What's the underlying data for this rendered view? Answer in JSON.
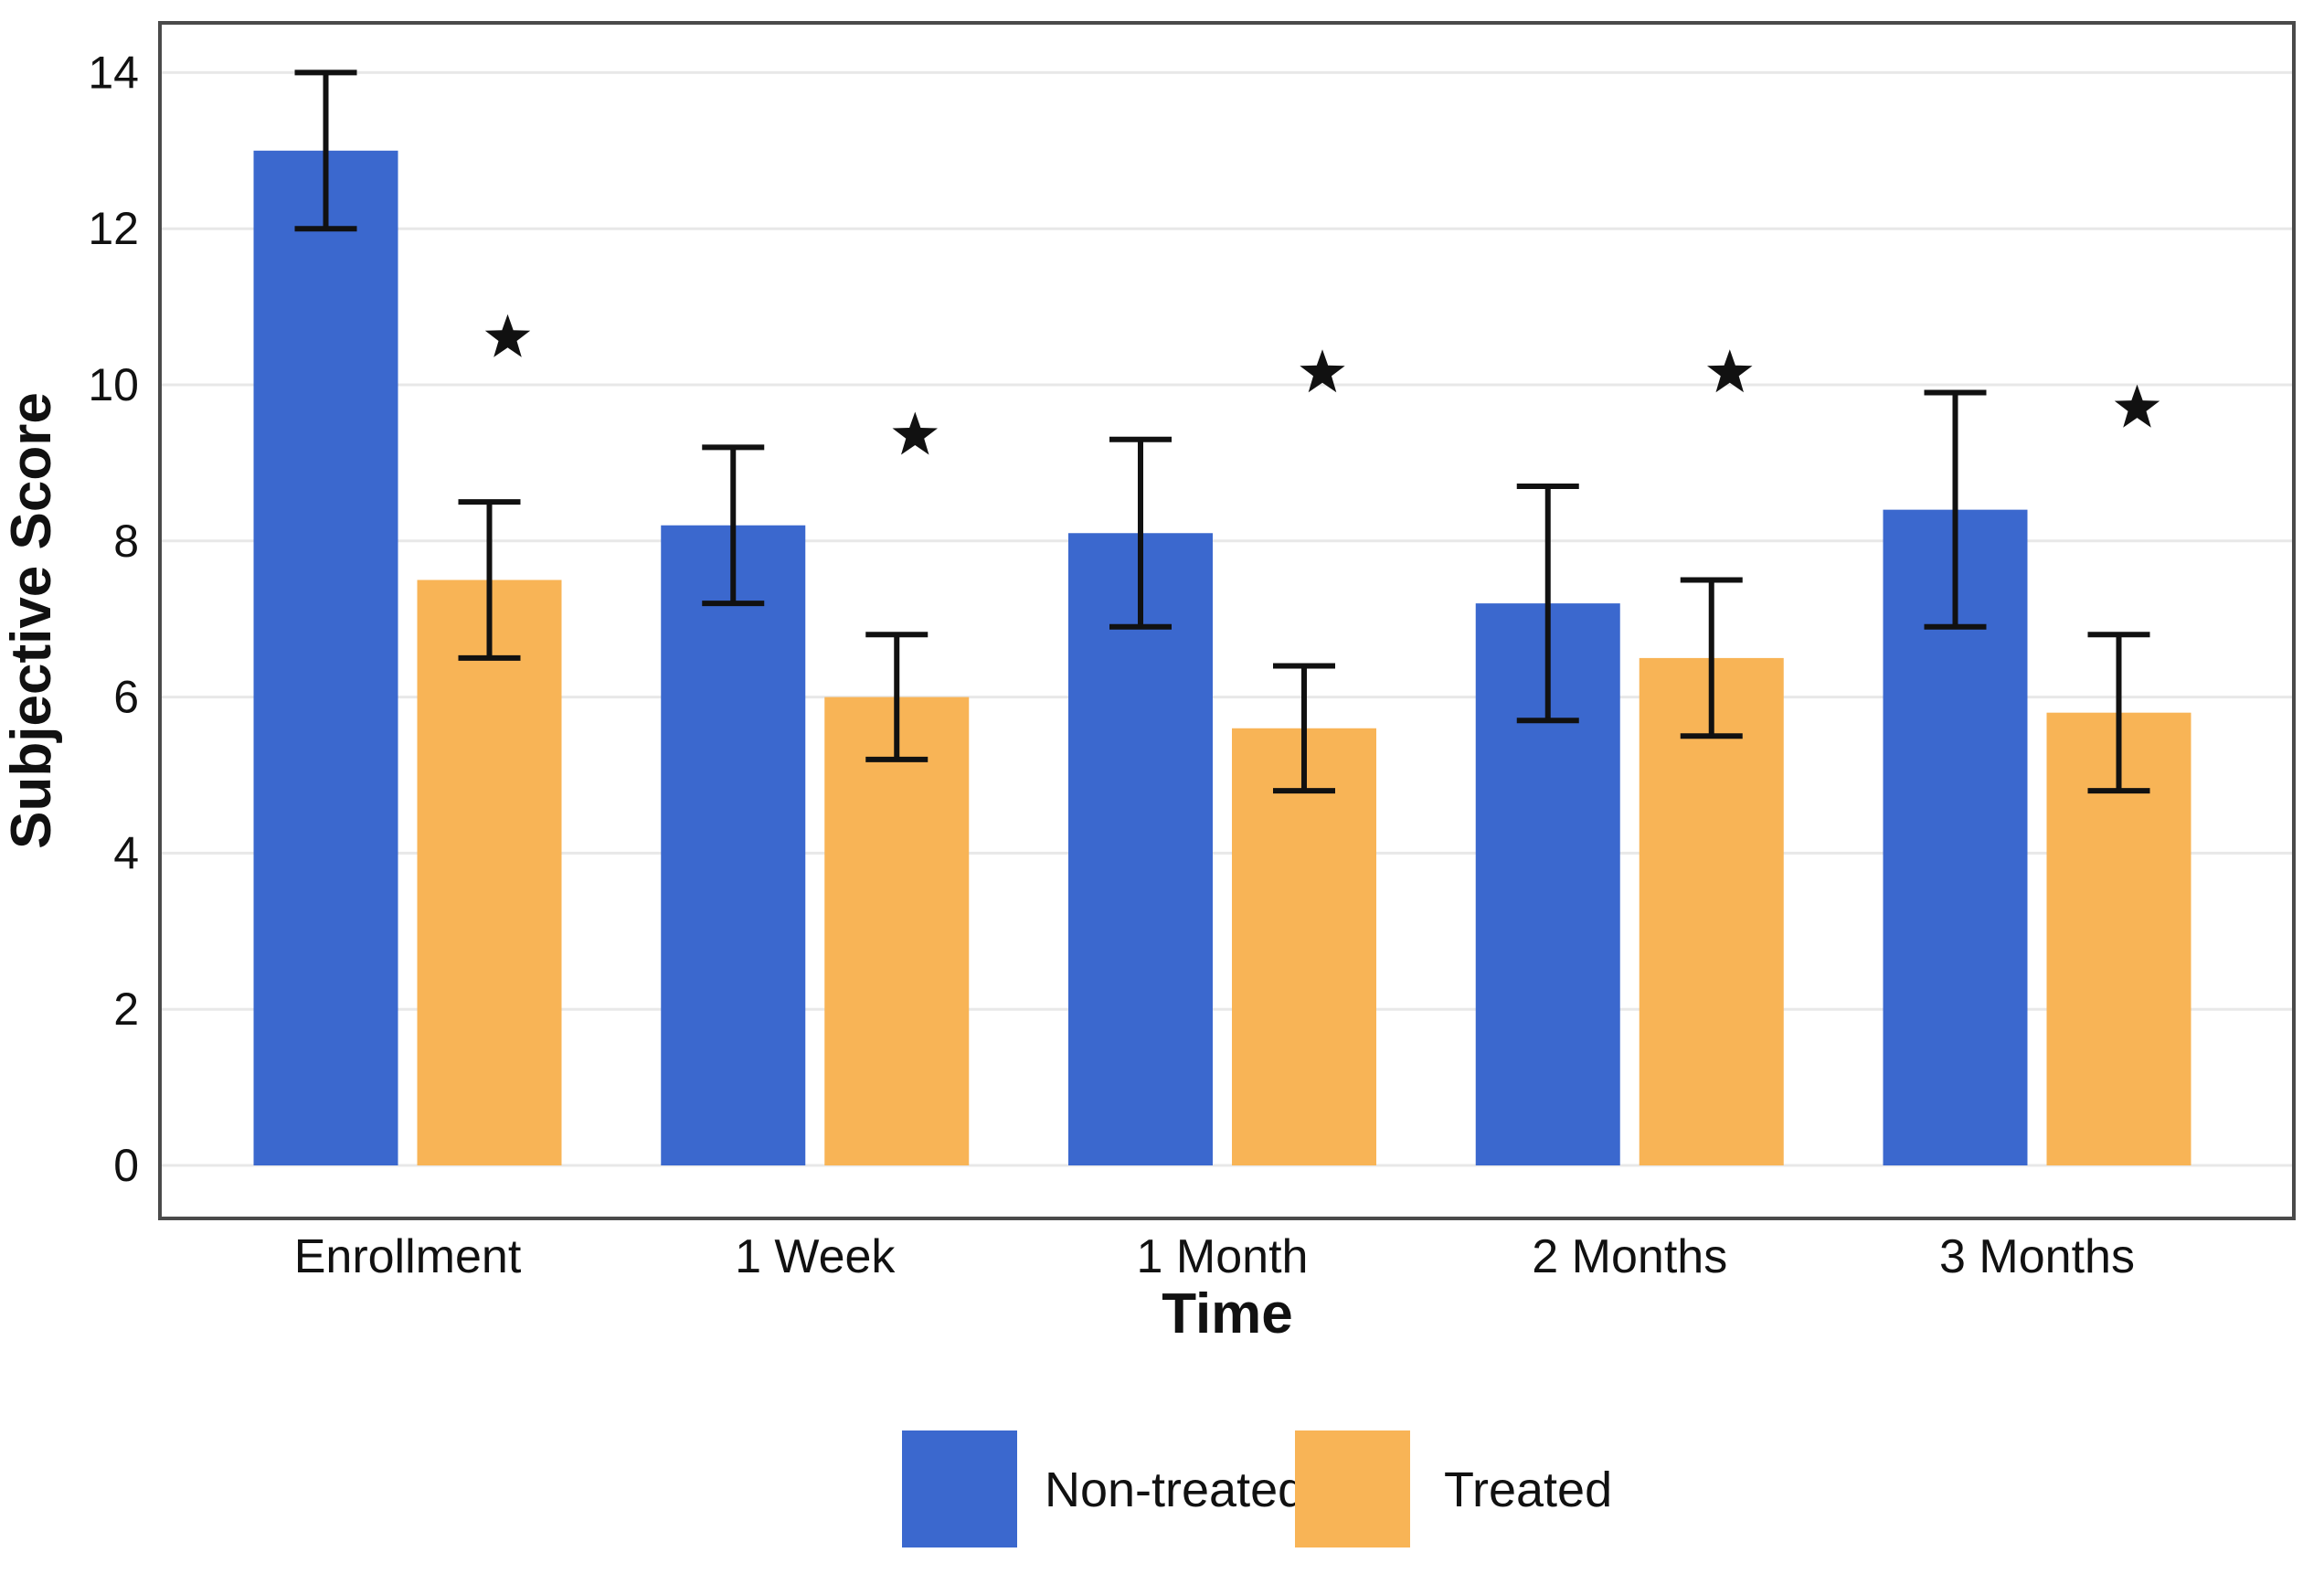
{
  "figure": {
    "background": "#ffffff",
    "plot_border_color": "#4a4a4a",
    "grid_color": "#e8e8e8",
    "error_bar_color": "#111111",
    "text_color": "#111111"
  },
  "chart_data": {
    "type": "bar",
    "title": "",
    "xlabel": "Time",
    "ylabel": "Subjective Score",
    "categories": [
      "Enrollment",
      "1 Week",
      "1 Month",
      "2 Months",
      "3 Months"
    ],
    "series": [
      {
        "name": "Non-treated",
        "color": "#3B68CE",
        "values": [
          13.0,
          8.2,
          8.1,
          7.2,
          8.4
        ],
        "error_low": [
          12.0,
          7.2,
          6.9,
          5.7,
          6.9
        ],
        "error_high": [
          14.0,
          9.2,
          9.3,
          8.7,
          9.9
        ]
      },
      {
        "name": "Treated",
        "color": "#F8B456",
        "values": [
          7.5,
          6.0,
          5.6,
          6.5,
          5.8
        ],
        "error_low": [
          6.5,
          5.2,
          4.8,
          5.5,
          4.8
        ],
        "error_high": [
          8.5,
          6.8,
          6.4,
          7.5,
          6.8
        ]
      }
    ],
    "significance": {
      "symbol": "*",
      "applies_to_series": "Treated",
      "marker_y_values": [
        10.6,
        9.35,
        10.15,
        10.15,
        9.7
      ]
    },
    "y_ticks": [
      0,
      2,
      4,
      6,
      8,
      10,
      12,
      14
    ],
    "ylim": [
      -0.7,
      14.6
    ],
    "grid": true,
    "legend_position": "bottom-center"
  }
}
